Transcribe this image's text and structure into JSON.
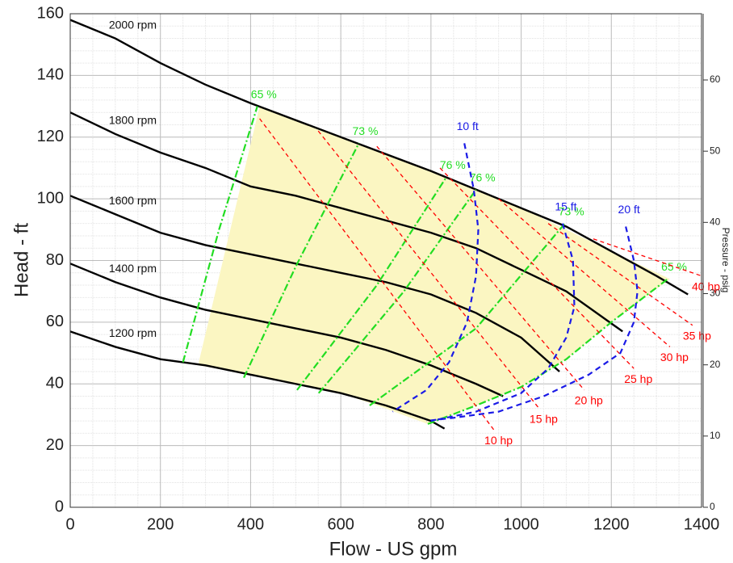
{
  "chart_data": {
    "type": "line",
    "xlabel": "Flow - US gpm",
    "ylabel": "Head - ft",
    "y2label": "Pressure - psig",
    "xlim": [
      0,
      1400
    ],
    "ylim": [
      0,
      160
    ],
    "y2lim": [
      0,
      69.3
    ],
    "xticks": [
      0,
      200,
      400,
      600,
      800,
      1000,
      1200,
      1400
    ],
    "yticks": [
      0,
      20,
      40,
      60,
      80,
      100,
      120,
      140,
      160
    ],
    "y2ticks": [
      0,
      10,
      20,
      30,
      40,
      50,
      60
    ],
    "grid": true,
    "xminor_step": 50,
    "yminor_step": 4,
    "series": [
      {
        "kind": "region",
        "color": "#fbf6c2",
        "x": [
          285,
          420,
          600,
          800,
          1000,
          1200,
          1330,
          1200,
          1100,
          1000,
          900,
          793,
          700,
          600,
          500,
          400,
          285
        ],
        "values": [
          47,
          130,
          120,
          109,
          97,
          83,
          74,
          60,
          48,
          39,
          33,
          27,
          32,
          37,
          40,
          43,
          46
        ]
      },
      {
        "kind": "speed",
        "name": "2000 rpm",
        "color": "#000000",
        "x": [
          0,
          100,
          200,
          300,
          400,
          600,
          800,
          1000,
          1100,
          1200,
          1300,
          1370
        ],
        "values": [
          158,
          152,
          144,
          137,
          131,
          120,
          109,
          97,
          91,
          83,
          75,
          69
        ]
      },
      {
        "kind": "speed",
        "name": "1800 rpm",
        "color": "#000000",
        "x": [
          0,
          100,
          200,
          300,
          400,
          500,
          600,
          700,
          800,
          900,
          1000,
          1100,
          1225
        ],
        "values": [
          128,
          121,
          115,
          110,
          104,
          101,
          97,
          93,
          89,
          84,
          77,
          70,
          57
        ]
      },
      {
        "kind": "speed",
        "name": "1600 rpm",
        "color": "#000000",
        "x": [
          0,
          100,
          200,
          300,
          400,
          500,
          600,
          700,
          800,
          900,
          1000,
          1085
        ],
        "values": [
          101,
          95,
          89,
          85,
          82,
          79,
          76,
          73,
          69,
          63,
          55,
          44
        ]
      },
      {
        "kind": "speed",
        "name": "1400 rpm",
        "color": "#000000",
        "x": [
          0,
          100,
          200,
          300,
          400,
          500,
          600,
          700,
          800,
          900,
          960
        ],
        "values": [
          79,
          73,
          68,
          64,
          61,
          58,
          55,
          51,
          46,
          40,
          36
        ]
      },
      {
        "kind": "speed",
        "name": "1200 rpm",
        "color": "#000000",
        "x": [
          0,
          100,
          200,
          300,
          400,
          500,
          600,
          700,
          800,
          830
        ],
        "values": [
          57,
          52,
          48,
          46,
          43,
          40,
          37,
          33,
          28,
          25.5
        ]
      },
      {
        "kind": "efficiency",
        "name": "65 %",
        "color": "#22dd22",
        "x": [
          250,
          330,
          415
        ],
        "values": [
          47,
          90,
          130
        ]
      },
      {
        "kind": "efficiency",
        "name": "73 %",
        "color": "#22dd22",
        "x": [
          385,
          500,
          640
        ],
        "values": [
          42,
          78,
          118
        ]
      },
      {
        "kind": "efficiency",
        "name": "76 %",
        "color": "#22dd22",
        "x": [
          503,
          680,
          834
        ],
        "values": [
          38,
          72,
          107
        ]
      },
      {
        "kind": "efficiency",
        "name": "76 %",
        "color": "#22dd22",
        "x": [
          551,
          740,
          900
        ],
        "values": [
          37,
          70,
          103
        ]
      },
      {
        "kind": "efficiency",
        "name": "73 %",
        "color": "#22dd22",
        "x": [
          664,
          900,
          1097
        ],
        "values": [
          33,
          58,
          92
        ]
      },
      {
        "kind": "efficiency",
        "name": "65 %",
        "color": "#22dd22",
        "x": [
          793,
          900,
          1000,
          1100,
          1200,
          1325
        ],
        "values": [
          27,
          33,
          39,
          48,
          60,
          74
        ]
      },
      {
        "kind": "power",
        "name": "10 hp",
        "color": "#ff0000",
        "x": [
          420,
          940
        ],
        "values": [
          126,
          25
        ]
      },
      {
        "kind": "power",
        "name": "15 hp",
        "color": "#ff0000",
        "x": [
          550,
          1040
        ],
        "values": [
          122,
          32
        ]
      },
      {
        "kind": "power",
        "name": "20 hp",
        "color": "#ff0000",
        "x": [
          680,
          1140
        ],
        "values": [
          117,
          38
        ]
      },
      {
        "kind": "power",
        "name": "25 hp",
        "color": "#ff0000",
        "x": [
          820,
          1250
        ],
        "values": [
          110,
          45
        ]
      },
      {
        "kind": "power",
        "name": "30 hp",
        "color": "#ff0000",
        "x": [
          950,
          1330
        ],
        "values": [
          100,
          52
        ]
      },
      {
        "kind": "power",
        "name": "35 hp",
        "color": "#ff0000",
        "x": [
          1060,
          1380
        ],
        "values": [
          92,
          59
        ]
      },
      {
        "kind": "power",
        "name": "40 hp",
        "color": "#ff0000",
        "x": [
          1160,
          1400
        ],
        "values": [
          87,
          75
        ]
      },
      {
        "kind": "npsh",
        "name": "10 ft",
        "color": "#1a1ae6",
        "x": [
          874,
          895,
          905,
          900,
          880,
          840,
          790,
          715
        ],
        "values": [
          118,
          103,
          90,
          75,
          60,
          47,
          38,
          31
        ]
      },
      {
        "kind": "npsh",
        "name": "15 ft",
        "color": "#1a1ae6",
        "x": [
          1092,
          1115,
          1118,
          1100,
          1060,
          1000,
          900,
          800
        ],
        "values": [
          92,
          80,
          65,
          55,
          45,
          37,
          31,
          28
        ]
      },
      {
        "kind": "npsh",
        "name": "20 ft",
        "color": "#1a1ae6",
        "x": [
          1232,
          1250,
          1258,
          1250,
          1220,
          1150,
          1050,
          950,
          850,
          790
        ],
        "values": [
          91,
          80,
          70,
          60,
          50,
          43,
          36,
          31,
          29,
          28
        ]
      }
    ]
  }
}
